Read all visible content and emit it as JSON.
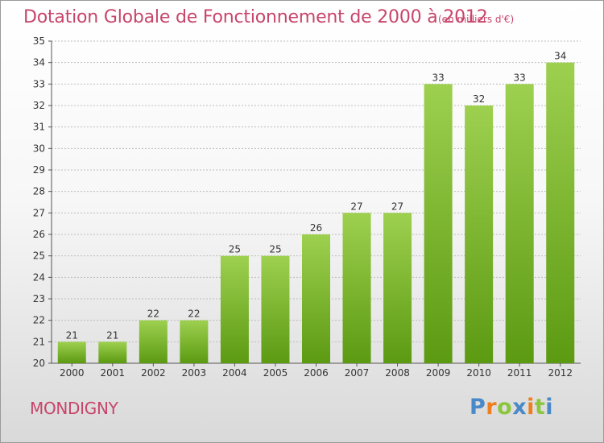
{
  "title": "Dotation Globale de Fonctionnement de 2000 à 2012",
  "unit_note": "(en milliers d'€)",
  "commune": "MONDIGNY",
  "logo": {
    "text": "Proxiti",
    "letters": [
      {
        "ch": "P",
        "color": "#4a89c8"
      },
      {
        "ch": "r",
        "color": "#f07d1e"
      },
      {
        "ch": "o",
        "color": "#8cc63f"
      },
      {
        "ch": "x",
        "color": "#4a89c8"
      },
      {
        "ch": "i",
        "color": "#f07d1e"
      },
      {
        "ch": "t",
        "color": "#8cc63f"
      },
      {
        "ch": "i",
        "color": "#4a89c8"
      }
    ]
  },
  "colors": {
    "accent": "#c8456a",
    "bar_top": "#9dd04f",
    "bar_bottom": "#5c9a12",
    "grid": "#bdbdbd"
  },
  "chart_data": {
    "type": "bar",
    "title": "Dotation Globale de Fonctionnement de 2000 à 2012",
    "subtitle": "(en milliers d'€)",
    "xlabel": "",
    "ylabel": "",
    "categories": [
      "2000",
      "2001",
      "2002",
      "2003",
      "2004",
      "2005",
      "2006",
      "2007",
      "2008",
      "2009",
      "2010",
      "2011",
      "2012"
    ],
    "values": [
      21,
      21,
      22,
      22,
      25,
      25,
      26,
      27,
      27,
      33,
      32,
      33,
      34
    ],
    "ylim": [
      20,
      35
    ],
    "yticks": [
      20,
      21,
      22,
      23,
      24,
      25,
      26,
      27,
      28,
      29,
      30,
      31,
      32,
      33,
      34,
      35
    ],
    "grid": true,
    "data_labels": true
  }
}
